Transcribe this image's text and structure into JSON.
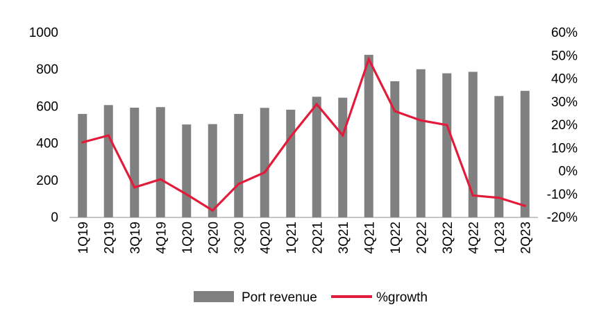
{
  "chart_data": {
    "type": "bar",
    "categories": [
      "1Q19",
      "2Q19",
      "3Q19",
      "4Q19",
      "1Q20",
      "2Q20",
      "3Q20",
      "4Q20",
      "1Q21",
      "2Q21",
      "3Q21",
      "4Q21",
      "1Q22",
      "2Q22",
      "3Q22",
      "4Q22",
      "1Q23",
      "2Q23"
    ],
    "series": [
      {
        "name": "Port revenue",
        "type": "bar",
        "axis": "left",
        "color": "#808080",
        "values": [
          560,
          608,
          594,
          597,
          503,
          505,
          560,
          593,
          583,
          653,
          648,
          880,
          737,
          802,
          780,
          788,
          657,
          685
        ]
      },
      {
        "name": "%growth",
        "type": "line",
        "axis": "right",
        "color": "#E31B3A",
        "values": [
          12.5,
          15.5,
          -7,
          -3.5,
          -10,
          -17,
          -5.5,
          -0.5,
          15,
          29,
          15.5,
          48.5,
          26,
          22,
          20,
          -10.5,
          -11.5,
          -15
        ]
      }
    ],
    "y_left": {
      "ylim": [
        0,
        1000
      ],
      "ticks": [
        0,
        200,
        400,
        600,
        800,
        1000
      ],
      "tick_labels": [
        "0",
        "200",
        "400",
        "600",
        "800",
        "1000"
      ]
    },
    "y_right": {
      "ylim": [
        -20,
        60
      ],
      "ticks": [
        -20,
        -10,
        0,
        10,
        20,
        30,
        40,
        50,
        60
      ],
      "tick_labels": [
        "-20%",
        "-10%",
        "0%",
        "10%",
        "20%",
        "30%",
        "40%",
        "50%",
        "60%"
      ]
    },
    "grid": false,
    "legend_position": "bottom-center"
  }
}
